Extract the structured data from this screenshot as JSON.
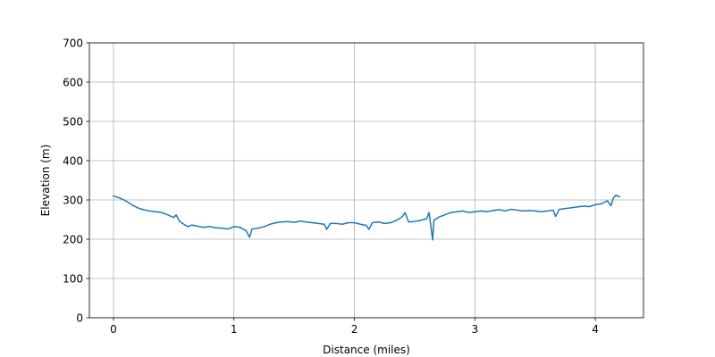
{
  "chart_data": {
    "type": "line",
    "title": "",
    "xlabel": "Distance (miles)",
    "ylabel": "Elevation (m)",
    "xlim": [
      -0.2,
      4.4
    ],
    "ylim": [
      0,
      700
    ],
    "xticks": [
      0,
      1,
      2,
      3,
      4
    ],
    "xtick_labels": [
      "0",
      "1",
      "2",
      "3",
      "4"
    ],
    "yticks": [
      0,
      100,
      200,
      300,
      400,
      500,
      600,
      700
    ],
    "ytick_labels": [
      "0",
      "100",
      "200",
      "300",
      "400",
      "500",
      "600",
      "700"
    ],
    "grid": true,
    "legend": "none",
    "series": [
      {
        "color": "#1f77b4",
        "x": [
          0.0,
          0.05,
          0.1,
          0.15,
          0.2,
          0.25,
          0.3,
          0.35,
          0.4,
          0.45,
          0.5,
          0.52,
          0.55,
          0.6,
          0.62,
          0.65,
          0.7,
          0.75,
          0.8,
          0.85,
          0.9,
          0.95,
          1.0,
          1.05,
          1.1,
          1.13,
          1.15,
          1.2,
          1.25,
          1.3,
          1.35,
          1.4,
          1.45,
          1.5,
          1.55,
          1.6,
          1.65,
          1.7,
          1.75,
          1.77,
          1.8,
          1.85,
          1.9,
          1.95,
          2.0,
          2.05,
          2.1,
          2.12,
          2.15,
          2.2,
          2.25,
          2.3,
          2.35,
          2.4,
          2.42,
          2.45,
          2.5,
          2.55,
          2.6,
          2.62,
          2.65,
          2.66,
          2.7,
          2.75,
          2.8,
          2.85,
          2.9,
          2.95,
          3.0,
          3.05,
          3.1,
          3.15,
          3.2,
          3.25,
          3.3,
          3.35,
          3.4,
          3.45,
          3.5,
          3.55,
          3.6,
          3.65,
          3.67,
          3.7,
          3.75,
          3.8,
          3.85,
          3.9,
          3.95,
          4.0,
          4.05,
          4.1,
          4.13,
          4.15,
          4.17,
          4.2
        ],
        "y": [
          310,
          305,
          298,
          288,
          280,
          275,
          272,
          270,
          268,
          262,
          255,
          262,
          245,
          235,
          232,
          236,
          233,
          230,
          232,
          229,
          228,
          226,
          232,
          230,
          222,
          205,
          226,
          228,
          232,
          238,
          242,
          244,
          245,
          243,
          246,
          244,
          242,
          240,
          238,
          225,
          240,
          240,
          238,
          242,
          242,
          238,
          235,
          225,
          242,
          244,
          240,
          242,
          248,
          258,
          268,
          244,
          245,
          248,
          252,
          268,
          198,
          248,
          256,
          262,
          268,
          270,
          272,
          268,
          270,
          272,
          270,
          273,
          275,
          272,
          276,
          274,
          272,
          273,
          272,
          270,
          272,
          274,
          258,
          276,
          278,
          280,
          282,
          284,
          283,
          288,
          290,
          298,
          285,
          305,
          312,
          308
        ]
      }
    ]
  }
}
